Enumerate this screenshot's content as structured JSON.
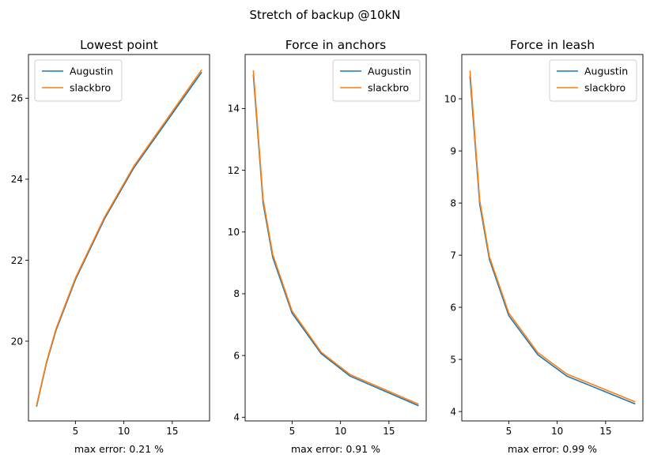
{
  "figure": {
    "suptitle": "Stretch of backup @10kN"
  },
  "colors": {
    "series_1": "#1f77b4",
    "series_2": "#ff7f0e",
    "axes": "#000000",
    "background": "#ffffff"
  },
  "chart_data": [
    {
      "type": "line",
      "title": "Lowest point",
      "xlabel": "max error: 0.21 %",
      "ylabel": "",
      "xlim": [
        0.15,
        18.85
      ],
      "ylim": [
        18.03,
        27.08
      ],
      "xticks": [
        5,
        10,
        15
      ],
      "yticks": [
        20,
        22,
        24,
        26
      ],
      "legend": "top-left",
      "grid": false,
      "x": [
        1,
        2,
        3,
        5,
        8,
        11,
        18
      ],
      "series": [
        {
          "name": "Augustin",
          "values": [
            18.4,
            19.45,
            20.27,
            21.52,
            23.02,
            24.27,
            26.63
          ]
        },
        {
          "name": "slackbro",
          "values": [
            18.43,
            19.48,
            20.31,
            21.56,
            23.06,
            24.31,
            26.69
          ]
        }
      ]
    },
    {
      "type": "line",
      "title": "Force in anchors",
      "xlabel": "max error: 0.91 %",
      "ylabel": "",
      "xlim": [
        0.15,
        18.85
      ],
      "ylim": [
        3.88,
        15.75
      ],
      "xticks": [
        5,
        10,
        15
      ],
      "yticks": [
        4,
        6,
        8,
        10,
        12,
        14
      ],
      "legend": "top-right",
      "grid": false,
      "x": [
        1,
        2,
        3,
        5,
        8,
        11,
        18
      ],
      "series": [
        {
          "name": "Augustin",
          "values": [
            15.08,
            10.95,
            9.18,
            7.37,
            6.06,
            5.33,
            4.38
          ]
        },
        {
          "name": "slackbro",
          "values": [
            15.22,
            11.07,
            9.27,
            7.44,
            6.11,
            5.38,
            4.43
          ]
        }
      ]
    },
    {
      "type": "line",
      "title": "Force in leash",
      "xlabel": "max error: 0.99 %",
      "ylabel": "",
      "xlim": [
        0.15,
        18.85
      ],
      "ylim": [
        3.82,
        10.85
      ],
      "xticks": [
        5,
        10,
        15
      ],
      "yticks": [
        4,
        5,
        6,
        7,
        8,
        9,
        10
      ],
      "legend": "top-right",
      "grid": false,
      "x": [
        1,
        2,
        3,
        5,
        8,
        11,
        18
      ],
      "series": [
        {
          "name": "Augustin",
          "values": [
            10.42,
            7.98,
            6.92,
            5.84,
            5.09,
            4.68,
            4.15
          ]
        },
        {
          "name": "slackbro",
          "values": [
            10.53,
            8.05,
            6.97,
            5.89,
            5.13,
            4.72,
            4.19
          ]
        }
      ]
    }
  ]
}
